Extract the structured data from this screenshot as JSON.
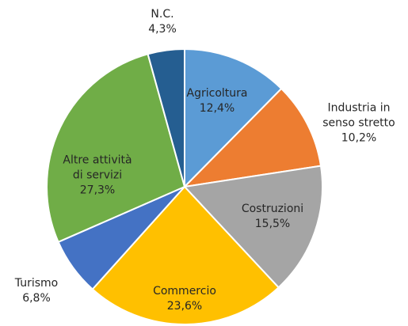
{
  "chart_data": {
    "type": "pie",
    "categories": [
      "Agricoltura",
      "Industria in senso stretto",
      "Costruzioni",
      "Commercio",
      "Turismo",
      "Altre attività di servizi",
      "N.C."
    ],
    "values": [
      12.4,
      10.2,
      15.5,
      23.6,
      6.8,
      27.3,
      4.3
    ],
    "value_labels": [
      "12,4%",
      "10,2%",
      "15,5%",
      "23,6%",
      "6,8%",
      "27,3%",
      "4,3%"
    ],
    "colors": [
      "#5b9bd5",
      "#ed7d31",
      "#a5a5a5",
      "#ffc000",
      "#4472c4",
      "#70ad47",
      "#255e91"
    ]
  }
}
